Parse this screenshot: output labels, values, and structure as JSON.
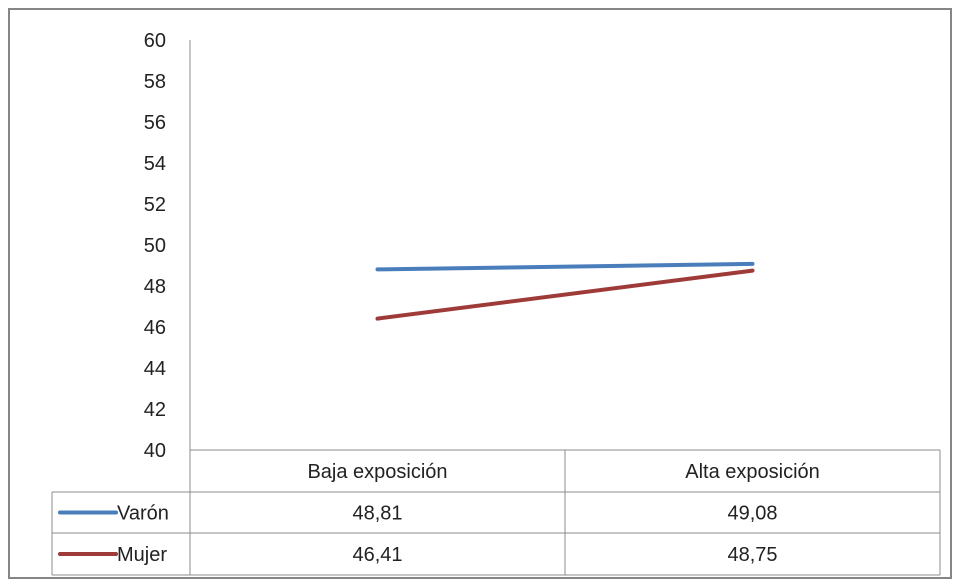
{
  "chart_data": {
    "type": "line",
    "title": "",
    "xlabel": "",
    "ylabel": "",
    "categories": [
      "Baja exposición",
      "Alta exposición"
    ],
    "ylim": [
      40,
      60
    ],
    "yticks": [
      40,
      42,
      44,
      46,
      48,
      50,
      52,
      54,
      56,
      58,
      60
    ],
    "grid": false,
    "legend": "data-table-left",
    "series": [
      {
        "name": "Varón",
        "values": [
          48.81,
          49.08
        ],
        "labels": [
          "48,81",
          "49,08"
        ],
        "color": "#4a7ebb"
      },
      {
        "name": "Mujer",
        "values": [
          46.41,
          48.75
        ],
        "labels": [
          "46,41",
          "48,75"
        ],
        "color": "#9e3b39"
      }
    ]
  }
}
